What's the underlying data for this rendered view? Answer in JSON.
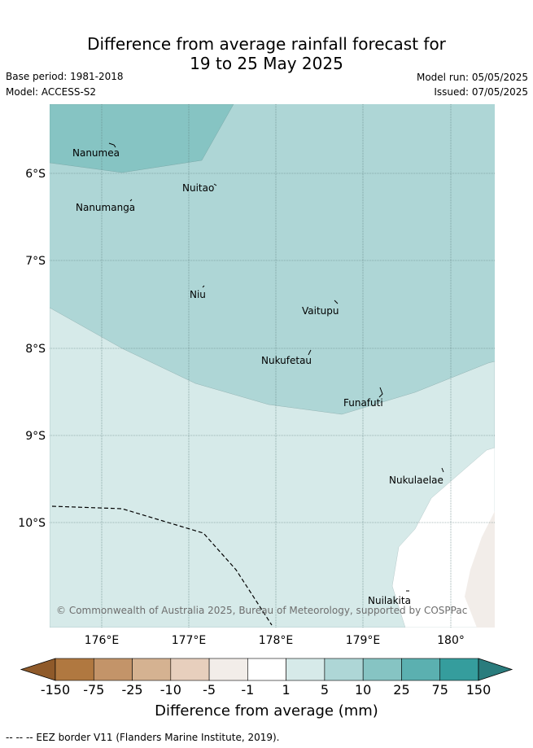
{
  "title_line1": "Difference from average rainfall forecast for",
  "title_line2": "19 to 25 May 2025",
  "base_period": "Base period: 1981-2018",
  "model": "Model: ACCESS-S2",
  "model_run": "Model run: 05/05/2025",
  "issued": "Issued: 07/05/2025",
  "lat_labels": [
    "6°S",
    "7°S",
    "8°S",
    "9°S",
    "10°S"
  ],
  "lon_labels": [
    "176°E",
    "177°E",
    "178°E",
    "179°E",
    "180°"
  ],
  "islands": [
    "Nanumea",
    "Nuitao",
    "Nanumanga",
    "Niu",
    "Vaitupu",
    "Nukufetau",
    "Funafuti",
    "Nukulaelae",
    "Nuilakita"
  ],
  "copyright": "© Commonwealth of Australia 2025, Bureau of Meteorology, supported by COSPPac",
  "colorbar": {
    "title": "Difference from average (mm)",
    "ticks": [
      "-150",
      "-75",
      "-25",
      "-10",
      "-5",
      "-1",
      "1",
      "5",
      "10",
      "25",
      "75",
      "150"
    ],
    "colors": [
      "#8f5a2a",
      "#b07840",
      "#c39469",
      "#d5b291",
      "#e7cfbd",
      "#f2ede9",
      "#ffffff",
      "#d6eae9",
      "#aed6d6",
      "#86c4c3",
      "#5bb0b0",
      "#359d9d",
      "#2a7c7d"
    ]
  },
  "legend_footer": "-- -- -- EEZ border V11 (Flanders Marine Institute, 2019)."
}
